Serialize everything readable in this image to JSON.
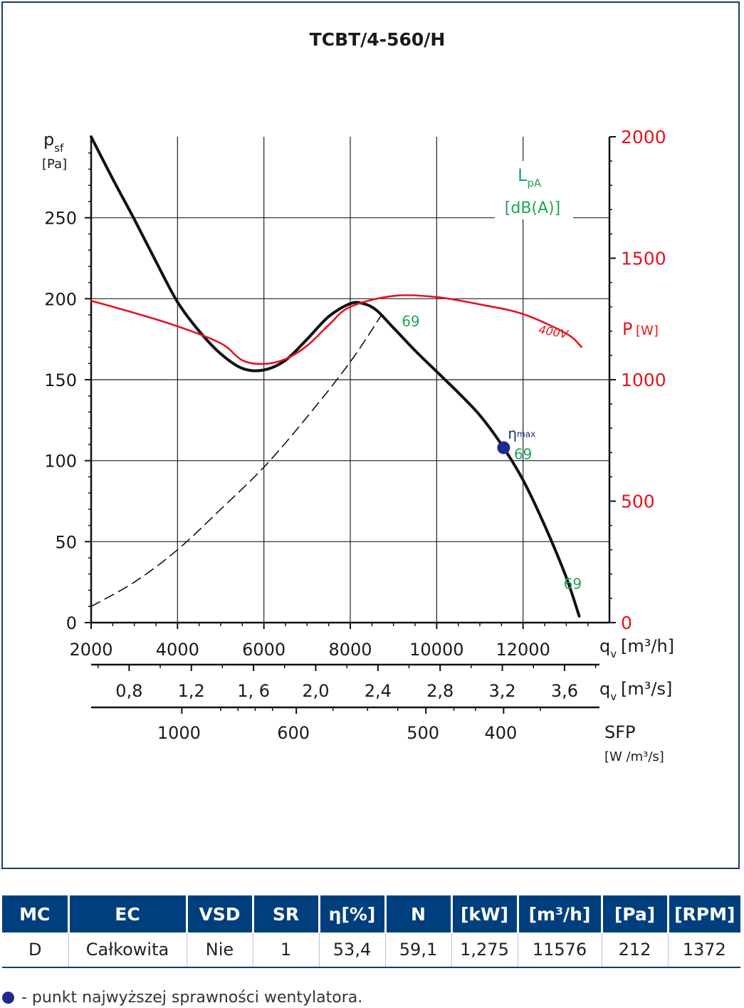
{
  "chart_data": {
    "type": "line",
    "title": "TCBT/4-560/H",
    "xlabel": "q",
    "xlabel_sub": "v",
    "xunit": "[m³/h]",
    "xlim": [
      2000,
      14000
    ],
    "xticks": [
      "2000",
      "4000",
      "6000",
      "8000",
      "10000",
      "12000"
    ],
    "ylabel": "p",
    "ylabel_sub": "sf",
    "yunit": "[Pa]",
    "ylim": [
      0,
      300
    ],
    "yticks": [
      "0",
      "50",
      "100",
      "150",
      "200",
      "250"
    ],
    "y2label": "P",
    "y2unit": "[W]",
    "y2lim": [
      0,
      2000
    ],
    "y2ticks": [
      "0",
      "500",
      "1000",
      "1500",
      "2000"
    ],
    "axis2_label": "q",
    "axis2_sub": "v",
    "axis2_unit": "[m³/s]",
    "axis2_ticks": [
      {
        "value": 0.8,
        "label": "0,8"
      },
      {
        "value": 1.2,
        "label": "1,2"
      },
      {
        "value": 1.6,
        "label": "1, 6"
      },
      {
        "value": 2.0,
        "label": "2,0"
      },
      {
        "value": 2.4,
        "label": "2,4"
      },
      {
        "value": 2.8,
        "label": "2,8"
      },
      {
        "value": 3.2,
        "label": "3,2"
      },
      {
        "value": 3.6,
        "label": "3,6"
      }
    ],
    "axis3_label": "SFP",
    "axis3_unit": "[W /m³/s]",
    "axis3_ticks": [
      {
        "value": 1000,
        "at_flow_m3h": 4100,
        "label": "1000"
      },
      {
        "value": 600,
        "at_flow_m3h": 6750,
        "label": "600"
      },
      {
        "value": 500,
        "at_flow_m3h": 9750,
        "label": "500"
      },
      {
        "value": 400,
        "at_flow_m3h": 11550,
        "label": "400"
      }
    ],
    "noise_label": "L",
    "noise_sub": "pA",
    "noise_unit": "[dB(A)]",
    "grid": true,
    "series": [
      {
        "role": "pressure",
        "color": "#111111",
        "x": [
          2000,
          2500,
          3000,
          3500,
          4000,
          4500,
          5000,
          5500,
          6000,
          6500,
          7000,
          7500,
          8000,
          8300,
          8600,
          9000,
          9500,
          10000,
          10500,
          11000,
          11500,
          12000,
          12500,
          13000,
          13300
        ],
        "y": [
          300,
          274,
          249,
          223,
          198,
          180,
          166,
          157,
          156,
          162,
          175,
          189,
          197,
          197,
          193,
          182,
          168,
          155,
          142,
          128,
          110,
          88,
          60,
          28,
          4
        ]
      },
      {
        "role": "power",
        "name": "400V",
        "color": "#e3141f",
        "x": [
          2000,
          3000,
          4000,
          5000,
          5500,
          6000,
          6500,
          7000,
          7500,
          8000,
          9000,
          10000,
          11000,
          12000,
          13000,
          13350
        ],
        "y": [
          1325,
          1275,
          1220,
          1150,
          1080,
          1065,
          1085,
          1140,
          1225,
          1300,
          1345,
          1340,
          1310,
          1270,
          1190,
          1135
        ]
      },
      {
        "role": "system-curve",
        "color": "#111111",
        "dashed": true,
        "x": [
          2000,
          3000,
          4000,
          5000,
          6000,
          7000,
          8000,
          8700
        ],
        "y": [
          10,
          25,
          45,
          70,
          96,
          127,
          161,
          189
        ]
      }
    ],
    "eta_max": {
      "x": 11550,
      "y": 108,
      "label": "η",
      "sub": "max",
      "color": "#1e2a8c"
    },
    "noise_labels": [
      {
        "x": 9400,
        "y": 183,
        "text": "69"
      },
      {
        "x": 12000,
        "y": 101,
        "text": "69"
      },
      {
        "x": 13150,
        "y": 21,
        "text": "69"
      }
    ]
  },
  "table": {
    "headers": [
      "MC",
      "EC",
      "VSD",
      "SR",
      "η[%]",
      "N",
      "[kW]",
      "[m³/h]",
      "[Pa]",
      "[RPM]"
    ],
    "row": [
      "D",
      "Całkowita",
      "Nie",
      "1",
      "53,4",
      "59,1",
      "1,275",
      "11576",
      "212",
      "1372"
    ]
  },
  "legend_note": "- punkt najwyższej sprawności wentylatora.",
  "colors": {
    "header_bg": "#003f7d",
    "frame": "#1d3b6e",
    "power": "#e3141f",
    "noise": "#22a35a",
    "eta": "#1e2a8c"
  }
}
